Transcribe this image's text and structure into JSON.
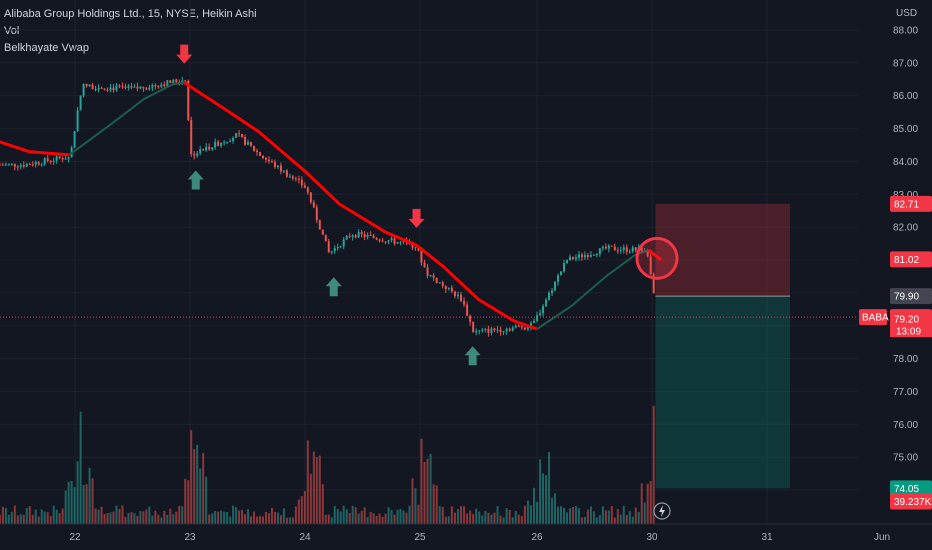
{
  "legend": {
    "title": "Alibaba Group Holdings Ltd., 15, NYSE, Heikin Ashi",
    "vol": "Vol",
    "indicator": "Belkhayate Vwap"
  },
  "chart_data": {
    "type": "candlestick",
    "currency_label": "USD",
    "symbol_tag": "BABA",
    "countdown": "13:09",
    "ylim": [
      73.4,
      88.2
    ],
    "y_ticks": [
      "88.00",
      "87.00",
      "86.00",
      "85.00",
      "84.00",
      "83.00",
      "82.00",
      "81.00",
      "80.00",
      "79.00",
      "78.00",
      "77.00",
      "76.00",
      "75.00",
      "74.00"
    ],
    "x_labels": [
      {
        "label": "22",
        "x": 22
      },
      {
        "label": "23",
        "x": 23
      },
      {
        "label": "24",
        "x": 24
      },
      {
        "label": "25",
        "x": 25
      },
      {
        "label": "26",
        "x": 26
      },
      {
        "label": "30",
        "x": 27
      },
      {
        "label": "31",
        "x": 28
      },
      {
        "label": "Jun",
        "x": 29
      }
    ],
    "price_tags": [
      {
        "value": "82.71",
        "price": 82.71,
        "color": "#f23645"
      },
      {
        "value": "81.02",
        "price": 81.02,
        "color": "#f23645"
      },
      {
        "value": "79.90",
        "price": 79.9,
        "color": "#434651"
      },
      {
        "value": "79.26",
        "price": 79.26,
        "color": "#f23645"
      },
      {
        "value": "79.20",
        "price": 79.2,
        "color": "#f23645"
      },
      {
        "value": "74.05",
        "price": 74.05,
        "color": "#089981"
      },
      {
        "value": "39.237K",
        "price": 73.65,
        "color": "#f23645"
      }
    ],
    "position": {
      "x_start": 27.03,
      "x_end": 28.2,
      "stop": 82.71,
      "entry": 79.9,
      "target": 74.05
    },
    "last_price": 79.26,
    "key_points": [
      [
        21.0,
        84.95
      ],
      [
        21.3,
        83.9
      ],
      [
        21.55,
        83.9
      ],
      [
        21.95,
        84.15
      ],
      [
        22.05,
        86.3
      ],
      [
        22.5,
        86.2
      ],
      [
        22.95,
        86.5
      ],
      [
        23.0,
        84.2
      ],
      [
        23.4,
        84.8
      ],
      [
        23.6,
        84.2
      ],
      [
        24.0,
        83.2
      ],
      [
        24.2,
        81.2
      ],
      [
        24.4,
        81.8
      ],
      [
        24.95,
        81.45
      ],
      [
        25.05,
        80.6
      ],
      [
        25.35,
        79.8
      ],
      [
        25.45,
        78.8
      ],
      [
        25.95,
        79.0
      ],
      [
        26.1,
        80.0
      ],
      [
        26.25,
        81.0
      ],
      [
        26.6,
        81.35
      ],
      [
        26.95,
        81.3
      ],
      [
        27.03,
        79.3
      ]
    ],
    "vwap_red": [
      [
        21.0,
        85.0
      ],
      [
        21.3,
        84.65
      ],
      [
        21.6,
        84.3
      ],
      [
        21.95,
        84.2
      ]
    ],
    "vwap_green": [
      [
        21.95,
        84.2
      ],
      [
        22.3,
        85.1
      ],
      [
        22.6,
        85.9
      ],
      [
        22.85,
        86.35
      ],
      [
        22.95,
        86.4
      ]
    ],
    "vwap_red2": [
      [
        22.95,
        86.4
      ],
      [
        23.3,
        85.6
      ],
      [
        23.6,
        84.9
      ],
      [
        24.0,
        83.7
      ],
      [
        24.3,
        82.7
      ],
      [
        24.7,
        81.85
      ],
      [
        24.97,
        81.45
      ],
      [
        25.2,
        80.8
      ],
      [
        25.5,
        79.8
      ],
      [
        25.8,
        79.15
      ],
      [
        26.0,
        78.9
      ]
    ],
    "vwap_green2": [
      [
        26.0,
        78.9
      ],
      [
        26.3,
        79.6
      ],
      [
        26.6,
        80.5
      ],
      [
        26.85,
        81.15
      ],
      [
        26.97,
        81.3
      ]
    ],
    "vwap_red3": [
      [
        26.97,
        81.3
      ],
      [
        27.08,
        81.0
      ]
    ],
    "down_arrows": [
      [
        22.95,
        87.25
      ],
      [
        24.97,
        82.25
      ]
    ],
    "up_arrows": [
      [
        23.05,
        83.45
      ],
      [
        24.25,
        80.2
      ],
      [
        25.45,
        78.1
      ]
    ],
    "highlight_circle": {
      "x": 27.0,
      "price": 81.05
    },
    "volume": {
      "max_label": "39.237K"
    }
  }
}
